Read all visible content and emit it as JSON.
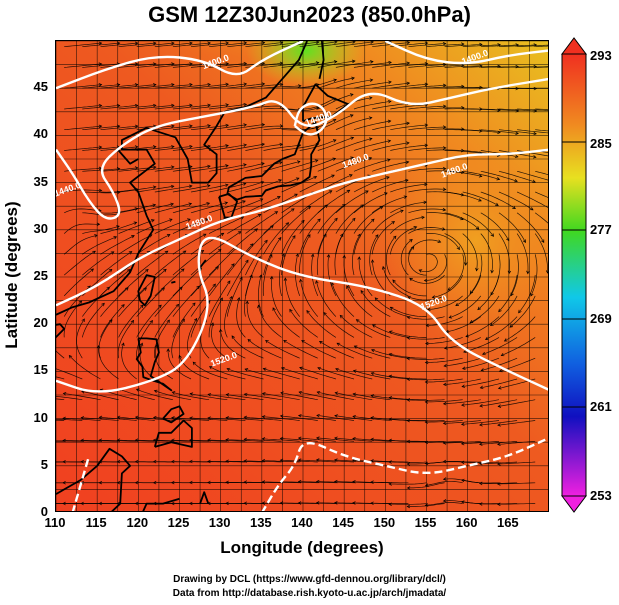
{
  "title": "GSM 12Z30Jun2023 (850.0hPa)",
  "xaxis": {
    "label": "Longitude (degrees)",
    "ticks": [
      "110",
      "115",
      "120",
      "125",
      "130",
      "135",
      "140",
      "145",
      "150",
      "155",
      "160",
      "165"
    ]
  },
  "yaxis": {
    "label": "Latitude  (degrees)",
    "ticks": [
      "0",
      "5",
      "10",
      "15",
      "20",
      "25",
      "30",
      "35",
      "40",
      "45"
    ]
  },
  "colorbar": {
    "ticks": [
      "293",
      "285",
      "277",
      "269",
      "261",
      "253"
    ]
  },
  "contours": [
    {
      "label": "1440.0",
      "lon": 111.5,
      "lat": 34.0
    },
    {
      "label": "1480.0",
      "lon": 127.5,
      "lat": 30.5
    },
    {
      "label": "1480.0",
      "lon": 146.5,
      "lat": 37.0
    },
    {
      "label": "1520.0",
      "lon": 130.5,
      "lat": 16.0
    },
    {
      "label": "1520.0",
      "lon": 156.0,
      "lat": 22.0
    },
    {
      "label": "1480.0",
      "lon": 158.5,
      "lat": 36.0
    },
    {
      "label": "1440.0",
      "lon": 142.0,
      "lat": 41.5
    },
    {
      "label": "1400.0",
      "lon": 129.5,
      "lat": 47.5
    },
    {
      "label": "1400.0",
      "lon": 161.0,
      "lat": 48.0
    }
  ],
  "credits": {
    "line1": "Drawing by DCL (https://www.gfd-dennou.org/library/dcl/)",
    "line2": "Data from http://database.rish.kyoto-u.ac.jp/arch/jmadata/"
  },
  "colors": {
    "warm": "#f04020",
    "orange": "#f08a20",
    "yellow": "#e8e020",
    "green": "#60e020",
    "cyan": "#10c8e8",
    "blue": "#1020d0",
    "magenta": "#e020e0"
  }
}
